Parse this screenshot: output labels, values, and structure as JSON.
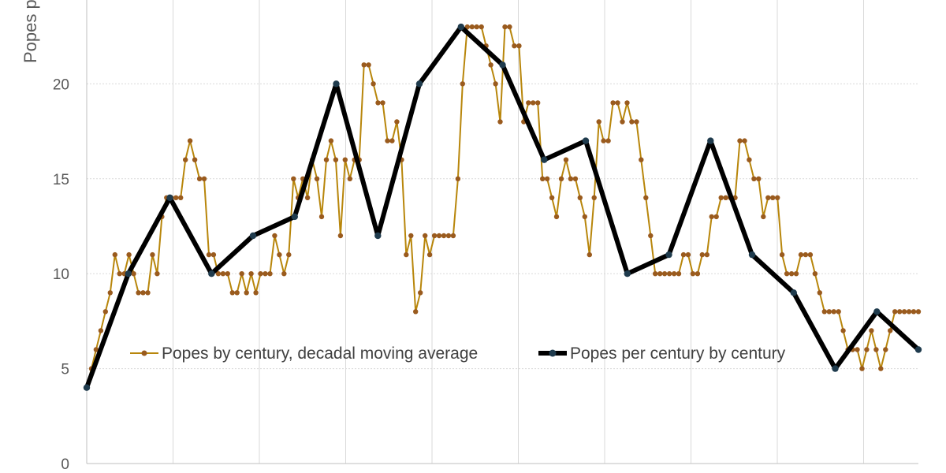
{
  "chart_data": {
    "type": "line",
    "title": "",
    "ylabel": "Popes p",
    "xlabel": "",
    "ylim": [
      0,
      24
    ],
    "yticks": [
      0,
      5,
      10,
      15,
      20
    ],
    "grid": {
      "horizontal": true,
      "vertical": true
    },
    "legend_position": "lower-center inside plot",
    "series": [
      {
        "name": "Popes by century, decadal moving average",
        "color": "#B8860B",
        "marker_color": "#9A5B1E",
        "style": "thin line with dot markers",
        "values": [
          4,
          5,
          6,
          7,
          8,
          9,
          11,
          10,
          10,
          11,
          10,
          9,
          9,
          9,
          11,
          10,
          13,
          14,
          14,
          14,
          14,
          16,
          17,
          16,
          15,
          15,
          11,
          11,
          10,
          10,
          10,
          9,
          9,
          10,
          9,
          10,
          9,
          10,
          10,
          10,
          12,
          11,
          10,
          11,
          15,
          14,
          15,
          14,
          16,
          15,
          13,
          16,
          17,
          16,
          12,
          16,
          15,
          16,
          16,
          21,
          21,
          20,
          19,
          19,
          17,
          17,
          18,
          16,
          11,
          12,
          8,
          9,
          12,
          11,
          12,
          12,
          12,
          12,
          12,
          15,
          20,
          23,
          23,
          23,
          23,
          22,
          21,
          20,
          18,
          23,
          23,
          22,
          22,
          18,
          19,
          19,
          19,
          15,
          15,
          14,
          13,
          15,
          16,
          15,
          15,
          14,
          13,
          11,
          14,
          18,
          17,
          17,
          19,
          19,
          18,
          19,
          18,
          18,
          16,
          14,
          12,
          10,
          10,
          10,
          10,
          10,
          10,
          11,
          11,
          10,
          10,
          11,
          11,
          13,
          13,
          14,
          14,
          14,
          14,
          17,
          17,
          16,
          15,
          15,
          13,
          14,
          14,
          14,
          11,
          10,
          10,
          10,
          11,
          11,
          11,
          10,
          9,
          8,
          8,
          8,
          8,
          7,
          6,
          6,
          6,
          5,
          6,
          7,
          6,
          5,
          6,
          7,
          8,
          8,
          8,
          8,
          8,
          8
        ]
      },
      {
        "name": "Popes per century by century",
        "color": "#000000",
        "marker_color": "#1F3B4D",
        "style": "thick line with dot markers",
        "values": [
          4,
          10,
          14,
          10,
          12,
          13,
          20,
          12,
          20,
          23,
          21,
          16,
          17,
          10,
          11,
          17,
          11,
          9,
          5,
          8,
          6
        ]
      }
    ]
  }
}
